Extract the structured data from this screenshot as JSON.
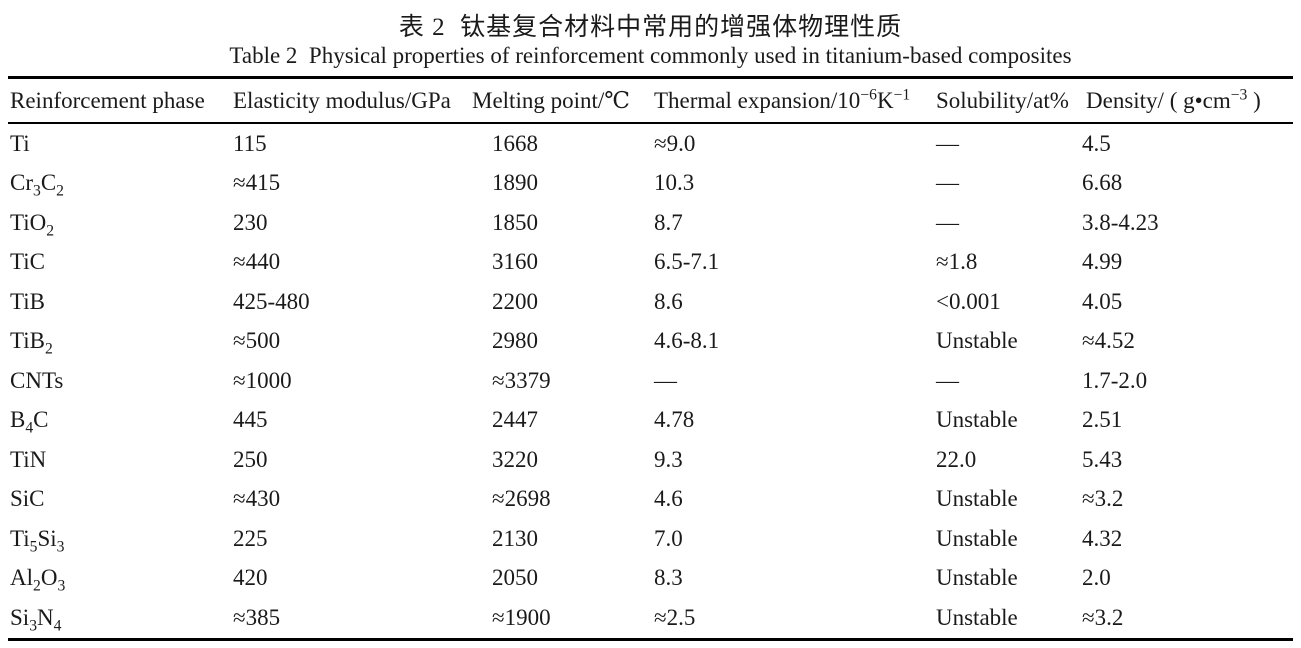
{
  "titles": {
    "chinese": "表 2  钛基复合材料中常用的增强体物理性质",
    "english": "Table 2  Physical properties of reinforcement commonly used in titanium-based composites"
  },
  "table": {
    "columns": [
      "Reinforcement phase",
      "Elasticity modulus/GPa",
      "Melting point/℃",
      "Thermal expansion/10^−6^K^−1^",
      "Solubility/at%",
      "Density/ ( g•cm^−3^ )"
    ],
    "rows": [
      [
        "Ti",
        "115",
        "1668",
        "≈9.0",
        "—",
        "4.5"
      ],
      [
        "Cr~3~C~2~",
        "≈415",
        "1890",
        "10.3",
        "—",
        "6.68"
      ],
      [
        "TiO~2~",
        "230",
        "1850",
        "8.7",
        "—",
        "3.8-4.23"
      ],
      [
        "TiC",
        "≈440",
        "3160",
        "6.5-7.1",
        "≈1.8",
        "4.99"
      ],
      [
        "TiB",
        "425-480",
        "2200",
        "8.6",
        "<0.001",
        "4.05"
      ],
      [
        "TiB~2~",
        "≈500",
        "2980",
        "4.6-8.1",
        "Unstable",
        "≈4.52"
      ],
      [
        "CNTs",
        "≈1000",
        "≈3379",
        "—",
        "—",
        "1.7-2.0"
      ],
      [
        "B~4~C",
        "445",
        "2447",
        "4.78",
        "Unstable",
        "2.51"
      ],
      [
        "TiN",
        "250",
        "3220",
        "9.3",
        "22.0",
        "5.43"
      ],
      [
        "SiC",
        "≈430",
        "≈2698",
        "4.6",
        "Unstable",
        "≈3.2"
      ],
      [
        "Ti~5~Si~3~",
        "225",
        "2130",
        "7.0",
        "Unstable",
        "4.32"
      ],
      [
        "Al~2~O~3~",
        "420",
        "2050",
        "8.3",
        "Unstable",
        "2.0"
      ],
      [
        "Si~3~N~4~",
        "≈385",
        "≈1900",
        "≈2.5",
        "Unstable",
        "≈3.2"
      ]
    ]
  },
  "colors": {
    "text": "#1a1a1a",
    "rule": "#000000",
    "background": "#ffffff"
  }
}
